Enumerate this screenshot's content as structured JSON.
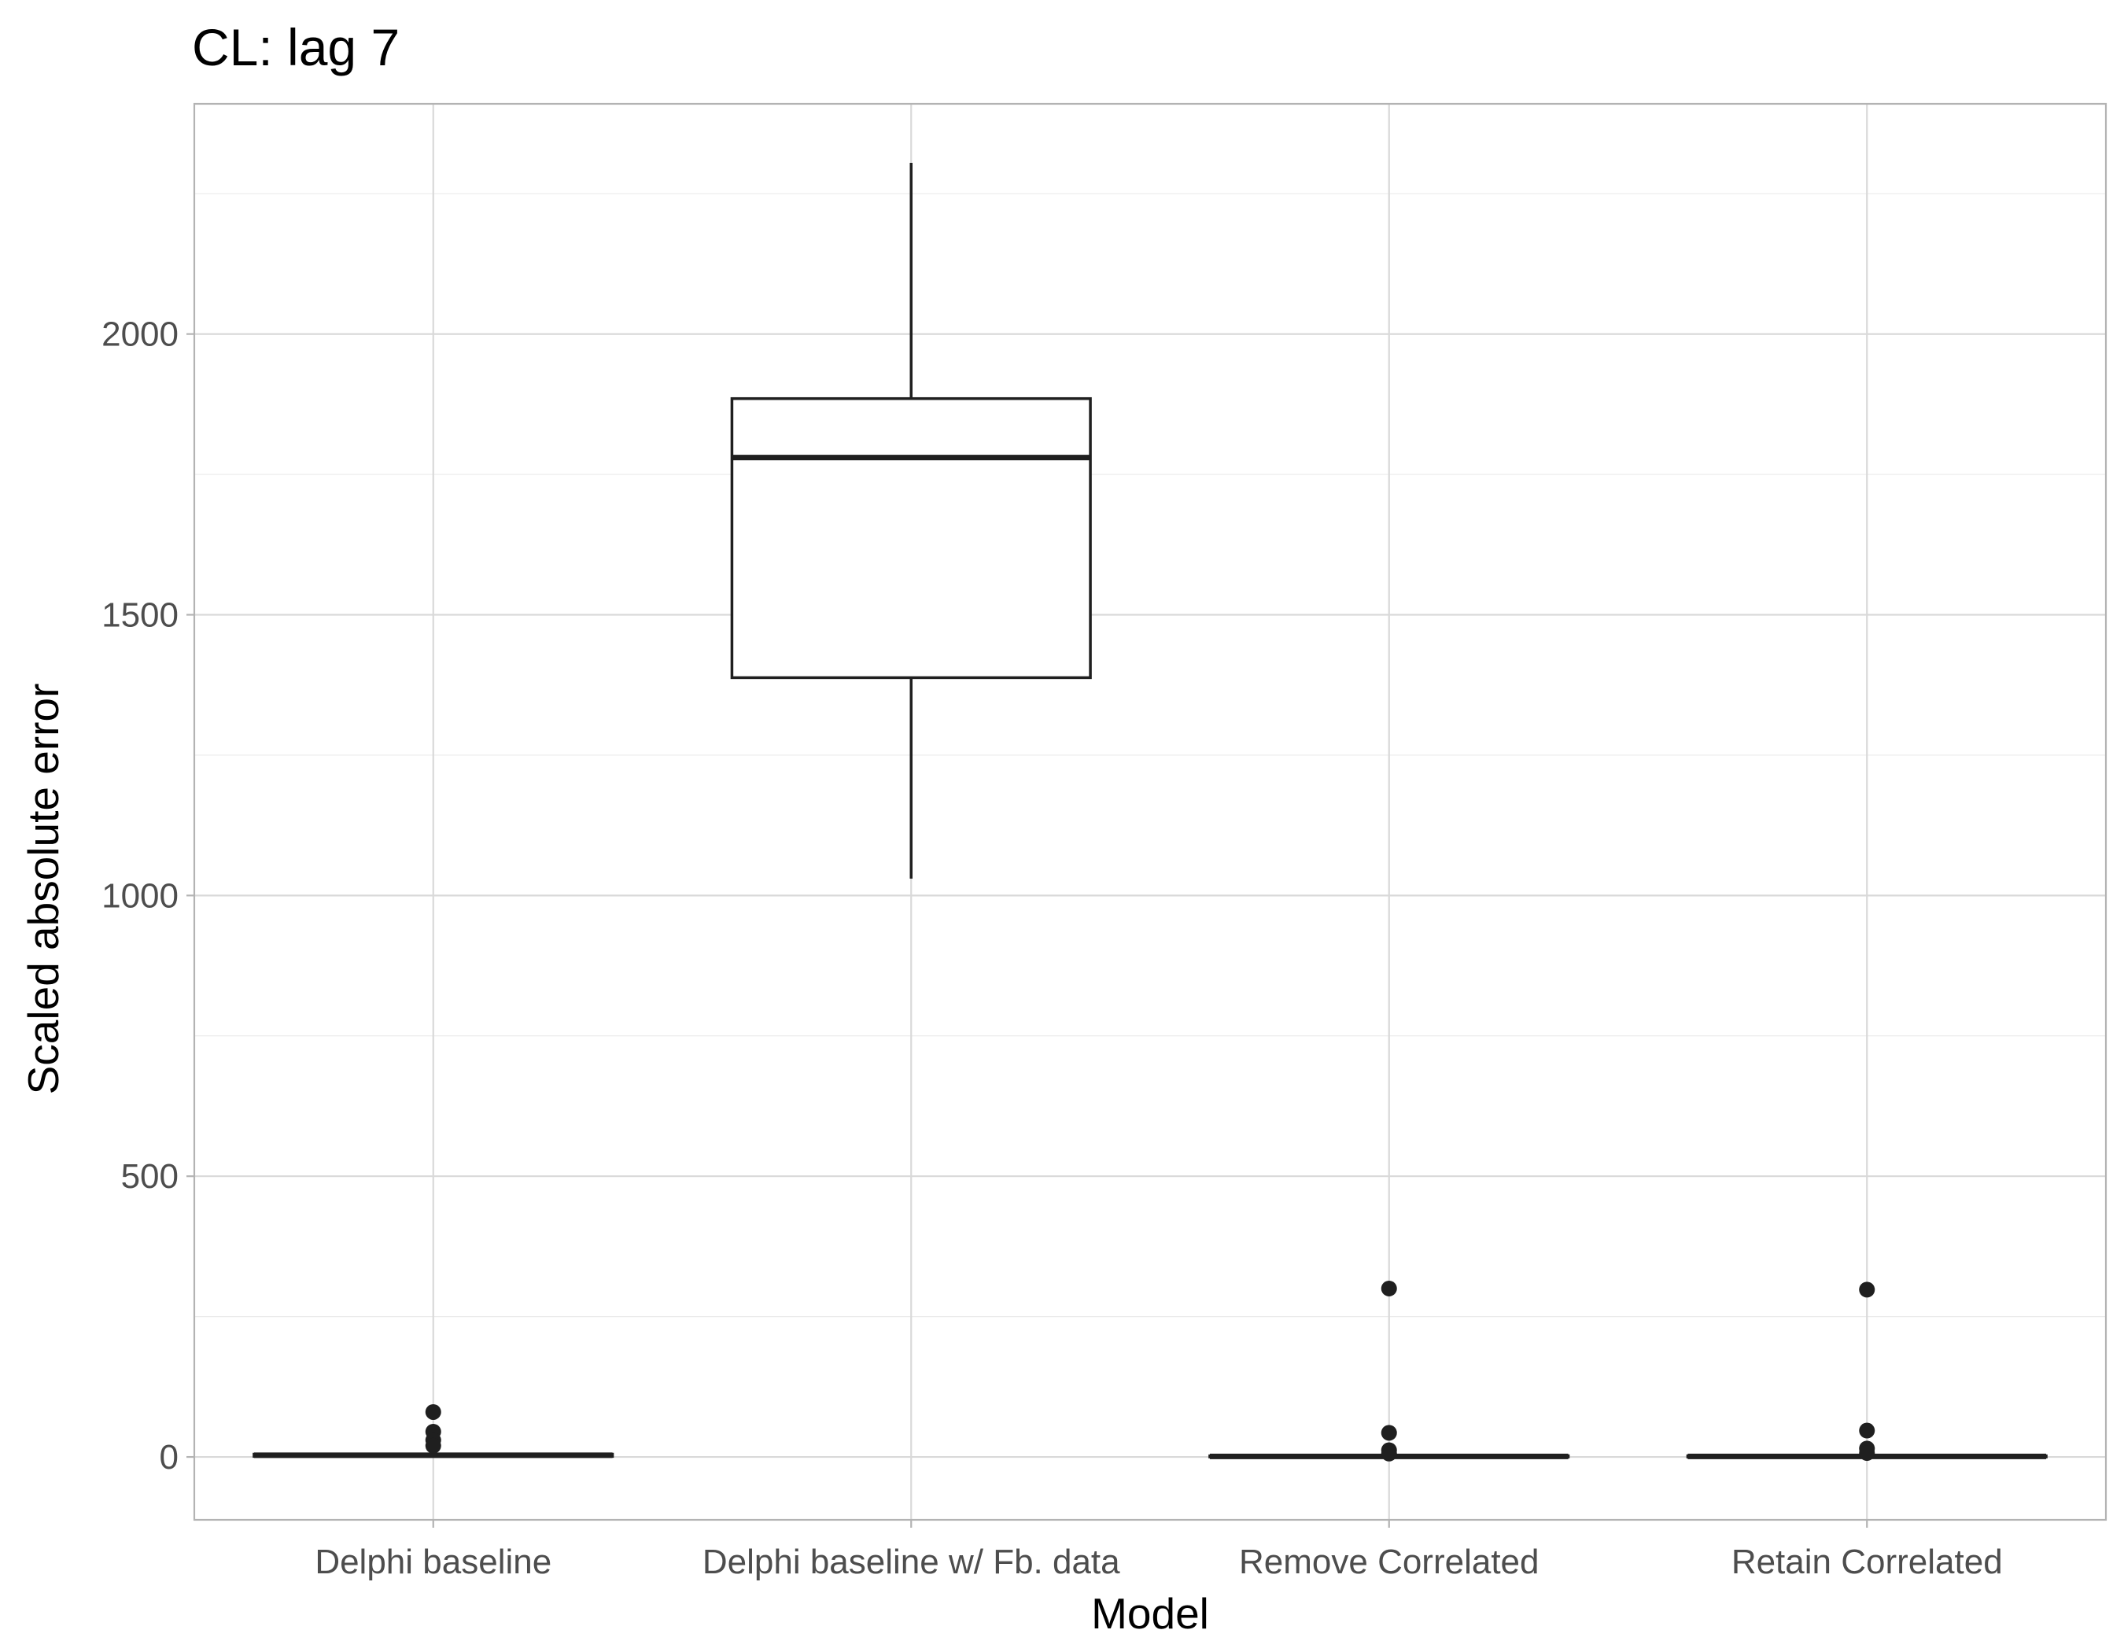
{
  "chart_data": {
    "type": "boxplot",
    "title": "CL: lag 7",
    "xlabel": "Model",
    "ylabel": "Scaled absolute error",
    "ylim": [
      -112,
      2410
    ],
    "yticks": [
      0,
      500,
      1000,
      1500,
      2000
    ],
    "ytick_labels": [
      "0",
      "500",
      "1000",
      "1500",
      "2000"
    ],
    "grid": true,
    "categories": [
      "Delphi baseline",
      "Delphi baseline w/ Fb. data",
      "Remove Correlated",
      "Retain Correlated"
    ],
    "boxes": [
      {
        "category": "Delphi baseline",
        "q1": 1,
        "median": 3,
        "q3": 5,
        "whisker_low": 0,
        "whisker_high": 9,
        "outliers": [
          80,
          45,
          30,
          20
        ]
      },
      {
        "category": "Delphi baseline w/ Fb. data",
        "q1": 1388,
        "median": 1780,
        "q3": 1885,
        "whisker_low": 1030,
        "whisker_high": 2305,
        "outliers": []
      },
      {
        "category": "Remove Correlated",
        "q1": 0,
        "median": 1,
        "q3": 2,
        "whisker_low": 0,
        "whisker_high": 4,
        "outliers": [
          300,
          43,
          12,
          6
        ]
      },
      {
        "category": "Retain Correlated",
        "q1": 0,
        "median": 1,
        "q3": 2,
        "whisker_low": 0,
        "whisker_high": 4,
        "outliers": [
          298,
          47,
          15,
          7
        ]
      }
    ]
  }
}
